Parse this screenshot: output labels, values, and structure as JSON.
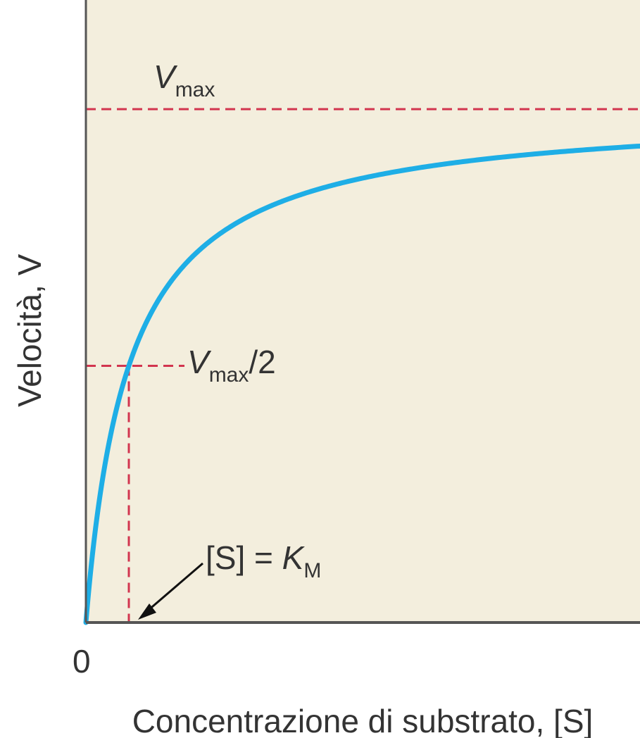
{
  "chart_data": {
    "type": "line",
    "ylabel": "Velocità, V",
    "xlabel": "Concentrazione di substrato, [S]",
    "x_tick_labels": [
      "0"
    ],
    "model": "V = Vmax * [S] / (KM + [S])",
    "params": {
      "Vmax": 1.0,
      "KM": 1.0
    },
    "xlim": [
      0,
      13
    ],
    "ylim": [
      0,
      1.2
    ],
    "series": [
      {
        "x": [
          0,
          0.1,
          0.25,
          0.5,
          0.75,
          1,
          1.5,
          2,
          3,
          4,
          5,
          6,
          8,
          10,
          13
        ],
        "values": [
          0,
          0.091,
          0.2,
          0.333,
          0.429,
          0.5,
          0.6,
          0.667,
          0.75,
          0.8,
          0.833,
          0.857,
          0.889,
          0.909,
          0.929
        ]
      }
    ],
    "annotations": {
      "vmax": {
        "main": "V",
        "sub": "max"
      },
      "vmax_half": {
        "main": "V",
        "sub": "max",
        "suffix": "/2"
      },
      "km": {
        "prefix": "[S] = ",
        "main": "K",
        "sub": "M"
      }
    },
    "colors": {
      "curve": "#1EAEE6",
      "guides": "#D2354F",
      "plot_bg": "#F3EEDD",
      "axis": "#555555",
      "arrow": "#111111"
    }
  }
}
